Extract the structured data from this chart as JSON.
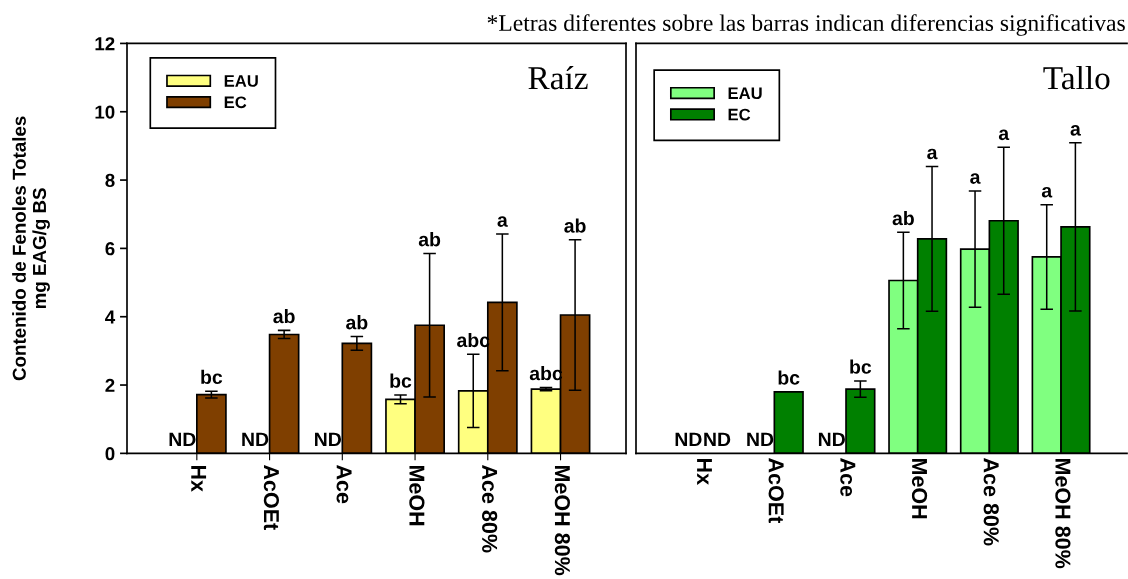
{
  "chart_data": [
    {
      "type": "bar",
      "title": "Raíz",
      "ylabel": "Contenido de Fenoles Totales\nmg EAG/g BS",
      "categories": [
        "Hx",
        "AcOEt",
        "Ace",
        "MeOH",
        "Ace 80%",
        "MeOH 80%"
      ],
      "series": [
        {
          "name": "EAU",
          "color": "#ffff80",
          "values": [
            null,
            null,
            null,
            1.58,
            1.83,
            1.88
          ],
          "errors": [
            null,
            null,
            null,
            0.13,
            1.07,
            0.05
          ],
          "value_labels": [
            "ND",
            "ND",
            "ND",
            null,
            null,
            null
          ]
        },
        {
          "name": "EC",
          "color": "#7f3f00",
          "values": [
            1.72,
            3.48,
            3.22,
            3.75,
            4.42,
            4.05
          ],
          "errors": [
            0.1,
            0.12,
            0.2,
            2.1,
            2.0,
            2.2
          ]
        }
      ],
      "ylim": [
        0,
        12
      ],
      "yticks": [
        0,
        2,
        4,
        6,
        8,
        10,
        12
      ],
      "legend": "top left",
      "annotations": [
        "bc",
        "ab",
        "ab",
        "bc",
        "ab",
        "abc",
        "a",
        "abc",
        "ab"
      ]
    },
    {
      "type": "bar",
      "title": "Tallo",
      "categories": [
        "Hx",
        "AcOEt",
        "Ace",
        "MeOH",
        "Ace 80%",
        "MeOH 80%"
      ],
      "series": [
        {
          "name": "EAU",
          "color": "#80ff80",
          "values": [
            null,
            null,
            null,
            5.06,
            5.98,
            5.75
          ],
          "errors": [
            null,
            null,
            null,
            1.41,
            1.7,
            1.53
          ],
          "value_labels": [
            "ND",
            "ND",
            "ND",
            null,
            null,
            null
          ]
        },
        {
          "name": "EC",
          "color": "#008000",
          "values": [
            null,
            1.8,
            1.88,
            6.28,
            6.81,
            6.63
          ],
          "errors": [
            null,
            null,
            0.24,
            2.12,
            2.15,
            2.46
          ],
          "value_labels": [
            "ND",
            null,
            null,
            null,
            null,
            null
          ]
        }
      ],
      "ylim": [
        0,
        12
      ],
      "yticks": [
        0,
        2,
        4,
        6,
        8,
        10,
        12
      ],
      "tick_labels": "x",
      "legend": "top left",
      "annotations": [
        "bc",
        "bc",
        "ab",
        "a",
        "a",
        "a",
        "a",
        "a",
        "*Letras diferentes sobre las barras indican diferencias significativas"
      ]
    }
  ]
}
